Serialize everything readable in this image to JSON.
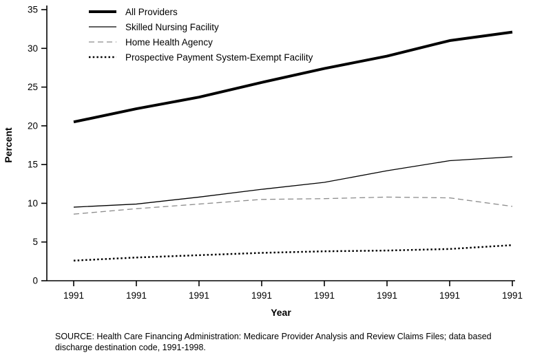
{
  "chart_data": {
    "type": "line",
    "title": "",
    "xlabel": "Year",
    "ylabel": "Percent",
    "ylim": [
      0,
      35
    ],
    "ytick_step": 5,
    "grid": false,
    "legend_position": "top-left",
    "categories": [
      "1991",
      "1991",
      "1991",
      "1991",
      "1991",
      "1991",
      "1991",
      "1991"
    ],
    "series": [
      {
        "name": "All Providers",
        "values": [
          20.5,
          22.2,
          23.7,
          25.6,
          27.4,
          29.0,
          31.0,
          32.1
        ],
        "style": "solid",
        "weight": 4,
        "color": "#000000"
      },
      {
        "name": "Skilled Nursing Facility",
        "values": [
          9.5,
          9.9,
          10.8,
          11.8,
          12.7,
          14.2,
          15.5,
          16.0
        ],
        "style": "solid",
        "weight": 1.3,
        "color": "#000000"
      },
      {
        "name": "Home Health Agency",
        "values": [
          8.6,
          9.3,
          9.9,
          10.5,
          10.6,
          10.8,
          10.7,
          9.6
        ],
        "style": "dashed",
        "weight": 1.3,
        "color": "#8c8c8c"
      },
      {
        "name": "Prospective Payment System-Exempt Facility",
        "values": [
          2.6,
          3.0,
          3.3,
          3.6,
          3.8,
          3.9,
          4.1,
          4.6
        ],
        "style": "dotted",
        "weight": 2.5,
        "color": "#000000"
      }
    ]
  },
  "source_note": "SOURCE:  Health Care Financing Administration: Medicare Provider Analysis and Review Claims Files; data based discharge destination code, 1991-1998."
}
